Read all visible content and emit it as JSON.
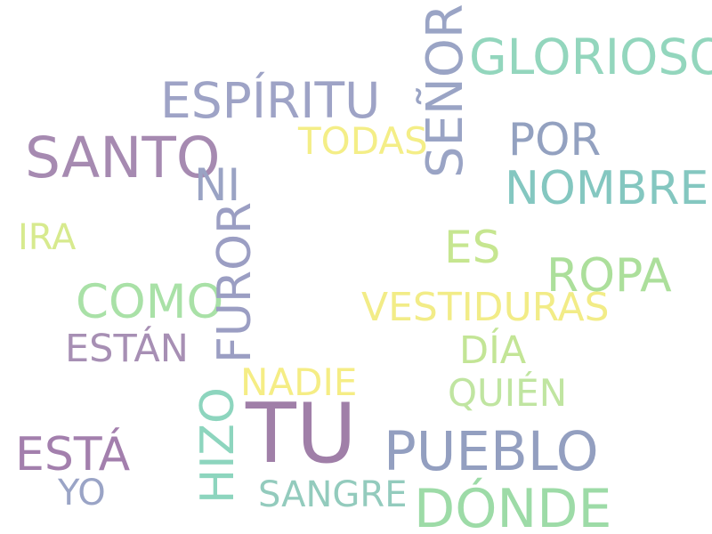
{
  "words": {
    "tu": {
      "text": "TU",
      "color": "#a07fa8"
    },
    "pueblo": {
      "text": "PUEBLO",
      "color": "#939fc0"
    },
    "dia_donde": {
      "text": "DÓNDE",
      "color": "#9ddba7"
    },
    "santo": {
      "text": "SANTO",
      "color": "#a68ab1"
    },
    "senor": {
      "text": "SEÑOR",
      "color": "#9aa4c5"
    },
    "espiritu": {
      "text": "ESPÍRITU",
      "color": "#9ea3c6"
    },
    "glorioso": {
      "text": "GLORIOSO",
      "color": "#93d6bd"
    },
    "nombre": {
      "text": "NOMBRE",
      "color": "#84c7c0"
    },
    "ropa": {
      "text": "ROPA",
      "color": "#acdf9b"
    },
    "como": {
      "text": "COMO",
      "color": "#a9e1a7"
    },
    "furor": {
      "text": "FUROR",
      "color": "#9b9ec3"
    },
    "esta": {
      "text": "ESTÁ",
      "color": "#a37fad"
    },
    "hizo": {
      "text": "HIZO",
      "color": "#8dd5be"
    },
    "por": {
      "text": "POR",
      "color": "#93a1c0"
    },
    "es": {
      "text": "ES",
      "color": "#c6e690"
    },
    "vestiduras": {
      "text": "VESTIDURAS",
      "color": "#f2ec87"
    },
    "todas": {
      "text": "TODAS",
      "color": "#f4ee87"
    },
    "ni": {
      "text": "NI",
      "color": "#9aa3c4"
    },
    "estan": {
      "text": "ESTÁN",
      "color": "#a78fb4"
    },
    "dia": {
      "text": "DÍA",
      "color": "#c3e596"
    },
    "nadie": {
      "text": "NADIE",
      "color": "#f5ed85"
    },
    "quien": {
      "text": "QUIÉN",
      "color": "#c0e5a1"
    },
    "sangre": {
      "text": "SANGRE",
      "color": "#93cbbd"
    },
    "ira": {
      "text": "IRA",
      "color": "#d7ea8e"
    },
    "yo": {
      "text": "YO",
      "color": "#9aa4c6"
    }
  }
}
